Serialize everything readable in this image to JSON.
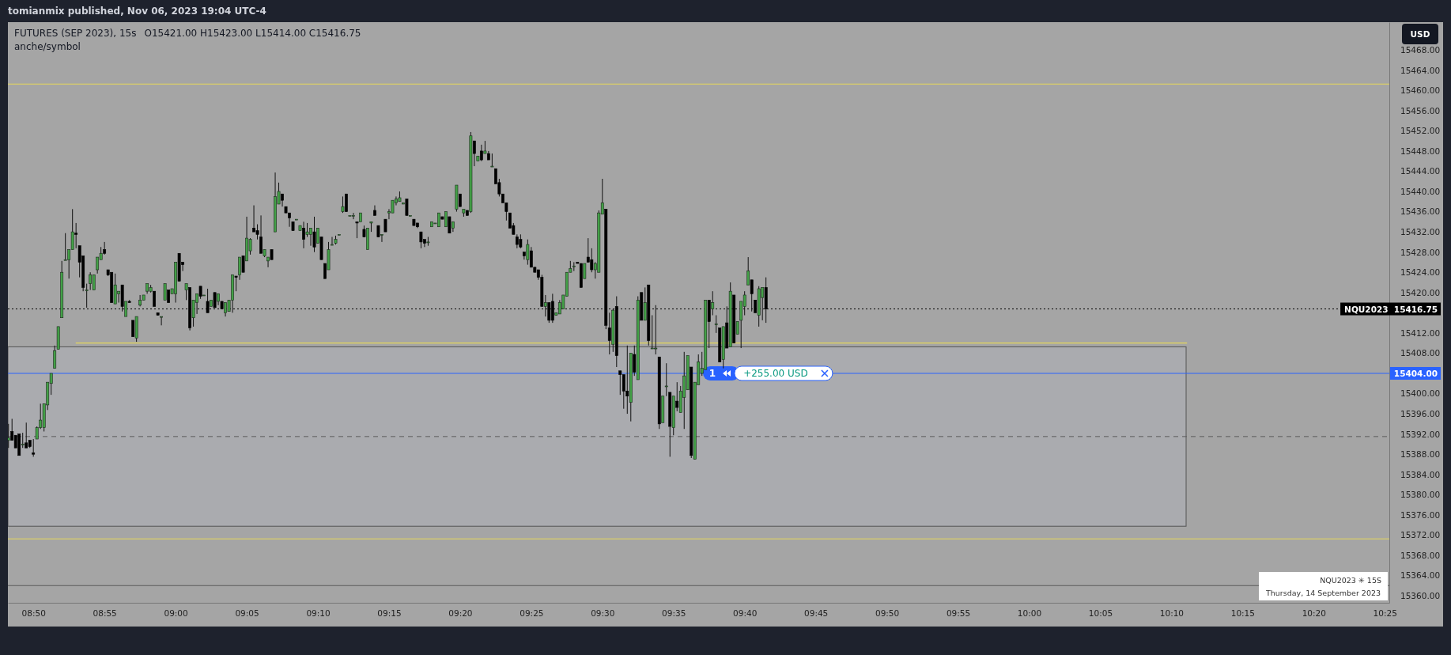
{
  "chart_data": {
    "type": "candlestick",
    "title": "FUTURES (SEP 2023), 15s",
    "subtitle": "anche/symbol",
    "annotations": [
      "tomianmix published, Nov 06, 2023 19:04 UTC-4",
      "O15421.00  H15423.00  L15414.00  C15416.75",
      "USD",
      "NQU2023 ✳ 15S",
      "Thursday, 14 September 2023",
      {
        "text": "1",
        "x": 9.629,
        "y": 15404
      },
      {
        "text": "+255.00 USD",
        "x": 9.703,
        "y": 15404
      }
    ],
    "xlim": [
      8.8035,
      10.422
    ],
    "ylim": [
      15358.6,
      15473.5
    ],
    "xticks": [
      {
        "value": 8.83333,
        "label": "08:50"
      },
      {
        "value": 8.91667,
        "label": "08:55"
      },
      {
        "value": 9,
        "label": "09:00"
      },
      {
        "value": 9.08333,
        "label": "09:05"
      },
      {
        "value": 9.16667,
        "label": "09:10"
      },
      {
        "value": 9.25,
        "label": "09:15"
      },
      {
        "value": 9.33333,
        "label": "09:20"
      },
      {
        "value": 9.41667,
        "label": "09:25"
      },
      {
        "value": 9.5,
        "label": "09:30"
      },
      {
        "value": 9.58333,
        "label": "09:35"
      },
      {
        "value": 9.66667,
        "label": "09:40"
      },
      {
        "value": 9.75,
        "label": "09:45"
      },
      {
        "value": 9.83333,
        "label": "09:50"
      },
      {
        "value": 9.91667,
        "label": "09:55"
      },
      {
        "value": 10,
        "label": "10:00"
      },
      {
        "value": 10.08333,
        "label": "10:05"
      },
      {
        "value": 10.16667,
        "label": "10:10"
      },
      {
        "value": 10.25,
        "label": "10:15"
      },
      {
        "value": 10.33333,
        "label": "10:20"
      },
      {
        "value": 10.41667,
        "label": "10:25"
      }
    ],
    "yticks": [
      {
        "value": 15360,
        "label": "15360.00"
      },
      {
        "value": 15364,
        "label": "15364.00"
      },
      {
        "value": 15368,
        "label": "15368.00"
      },
      {
        "value": 15372,
        "label": "15372.00"
      },
      {
        "value": 15376,
        "label": "15376.00"
      },
      {
        "value": 15380,
        "label": "15380.00"
      },
      {
        "value": 15384,
        "label": "15384.00"
      },
      {
        "value": 15388,
        "label": "15388.00"
      },
      {
        "value": 15392,
        "label": "15392.00"
      },
      {
        "value": 15396,
        "label": "15396.00"
      },
      {
        "value": 15400,
        "label": "15400.00"
      },
      {
        "value": 15408,
        "label": "15408.00"
      },
      {
        "value": 15412,
        "label": "15412.00"
      },
      {
        "value": 15420,
        "label": "15420.00"
      },
      {
        "value": 15424,
        "label": "15424.00"
      },
      {
        "value": 15428,
        "label": "15428.00"
      },
      {
        "value": 15432,
        "label": "15432.00"
      },
      {
        "value": 15436,
        "label": "15436.00"
      },
      {
        "value": 15440,
        "label": "15440.00"
      },
      {
        "value": 15444,
        "label": "15444.00"
      },
      {
        "value": 15448,
        "label": "15448.00"
      },
      {
        "value": 15452,
        "label": "15452.00"
      },
      {
        "value": 15456,
        "label": "15456.00"
      },
      {
        "value": 15460,
        "label": "15460.00"
      },
      {
        "value": 15464,
        "label": "15464.00"
      },
      {
        "value": 15468,
        "label": "15468.00"
      }
    ],
    "bands": [
      {
        "axis": "y",
        "from": 15373.75,
        "to": 15409.25,
        "color": "#aaabaf"
      }
    ],
    "ref_lines": [
      {
        "axis": "y",
        "value": 15461.25,
        "color": "#e6d85a"
      },
      {
        "axis": "y",
        "value": 15371.25,
        "color": "#e6d85a"
      },
      {
        "axis": "y",
        "value": 15362,
        "color": "#5d5d5d"
      },
      {
        "axis": "y",
        "value": 15391.5,
        "color": "#5d5d5d",
        "line_style": "dashed"
      },
      {
        "axis": "y",
        "value": 15404,
        "color": "#2962ff",
        "label": "15404.00"
      },
      {
        "axis": "y",
        "value": 15416.75,
        "color": "#000000",
        "line_style": "dotted",
        "label": "NQU2023  15416.75"
      }
    ],
    "series": [
      {
        "type": "line",
        "x": [
          8.883,
          10.185
        ],
        "values": [
          15410,
          15410
        ],
        "color": "#e6d85a"
      }
    ],
    "x": [
      8.80417,
      8.80833,
      8.8125,
      8.81667,
      8.82083,
      8.825,
      8.82917,
      8.83333,
      8.8375,
      8.84167,
      8.84583,
      8.85,
      8.85417,
      8.85833,
      8.8625,
      8.86667,
      8.87083,
      8.875,
      8.87917,
      8.88333,
      8.8875,
      8.89167,
      8.89583,
      8.9,
      8.90417,
      8.90833,
      8.9125,
      8.91667,
      8.92083,
      8.925,
      8.92917,
      8.93333,
      8.9375,
      8.94167,
      8.94583,
      8.95,
      8.95417,
      8.95833,
      8.9625,
      8.96667,
      8.97083,
      8.975,
      8.97917,
      8.98333,
      8.9875,
      8.99167,
      8.99583,
      9,
      9.00417,
      9.00833,
      9.0125,
      9.01667,
      9.02083,
      9.025,
      9.02917,
      9.03333,
      9.0375,
      9.04167,
      9.04583,
      9.05,
      9.05417,
      9.05833,
      9.0625,
      9.06667,
      9.07083,
      9.075,
      9.07917,
      9.08333,
      9.0875,
      9.09167,
      9.09583,
      9.1,
      9.10417,
      9.10833,
      9.1125,
      9.11667,
      9.12083,
      9.125,
      9.12917,
      9.13333,
      9.1375,
      9.14167,
      9.14583,
      9.15,
      9.15417,
      9.15833,
      9.1625,
      9.16667,
      9.17083,
      9.175,
      9.17917,
      9.18333,
      9.1875,
      9.19167,
      9.19583,
      9.2,
      9.20417,
      9.20833,
      9.2125,
      9.21667,
      9.22083,
      9.225,
      9.22917,
      9.23333,
      9.2375,
      9.24167,
      9.24583,
      9.25,
      9.25417,
      9.25833,
      9.2625,
      9.26667,
      9.27083,
      9.275,
      9.27917,
      9.28333,
      9.2875,
      9.29167,
      9.29583,
      9.3,
      9.30417,
      9.30833,
      9.3125,
      9.31667,
      9.32083,
      9.325,
      9.32917,
      9.33333,
      9.3375,
      9.34167,
      9.34583,
      9.35,
      9.35417,
      9.35833,
      9.3625,
      9.36667,
      9.37083,
      9.375,
      9.37917,
      9.38333,
      9.3875,
      9.39167,
      9.39583,
      9.4,
      9.40417,
      9.40833,
      9.4125,
      9.41667,
      9.42083,
      9.425,
      9.42917,
      9.43333,
      9.4375,
      9.44167,
      9.44583,
      9.45,
      9.45417,
      9.45833,
      9.4625,
      9.46667,
      9.47083,
      9.475,
      9.47917,
      9.48333,
      9.4875,
      9.49167,
      9.49583,
      9.5,
      9.50417,
      9.50833,
      9.5125,
      9.51667,
      9.52083,
      9.525,
      9.52917,
      9.53333,
      9.5375,
      9.54167,
      9.54583,
      9.55,
      9.55417,
      9.55833,
      9.5625,
      9.56667,
      9.57083,
      9.575,
      9.57917,
      9.58333,
      9.5875,
      9.59167,
      9.59583,
      9.6,
      9.60417,
      9.60833,
      9.6125,
      9.61667,
      9.62083,
      9.625,
      9.62917,
      9.63333,
      9.6375,
      9.64167,
      9.64583,
      9.65,
      9.65417,
      9.65833,
      9.6625,
      9.66667,
      9.67083,
      9.675,
      9.67917,
      9.68333,
      9.6875,
      9.69167
    ],
    "ohlc": [
      [
        15390.75,
        15394,
        15389.25,
        15391.25
      ],
      [
        15392.5,
        15395,
        15390.75,
        15390.75
      ],
      [
        15391.75,
        15391.75,
        15389.25,
        15389.25
      ],
      [
        15392,
        15392,
        15387.75,
        15387.75
      ],
      [
        15390,
        15392.25,
        15389.25,
        15390
      ],
      [
        15390.25,
        15394.25,
        15389.25,
        15389.25
      ],
      [
        15390.75,
        15390.75,
        15389.25,
        15389.5
      ],
      [
        15388.25,
        15391,
        15387.5,
        15388
      ],
      [
        15391,
        15393.5,
        15391,
        15393.25
      ],
      [
        15393.25,
        15398,
        15393,
        15394.75
      ],
      [
        15393.25,
        15398,
        15392.5,
        15398
      ],
      [
        15397.75,
        15402.25,
        15396.75,
        15402.25
      ],
      [
        15402,
        15404,
        15399.75,
        15404
      ],
      [
        15405,
        15409.5,
        15405,
        15408.5
      ],
      [
        15408.75,
        15413.25,
        15408.75,
        15413.25
      ],
      [
        15415,
        15426.25,
        15415,
        15424
      ],
      [
        15426.5,
        15431.75,
        15426.5,
        15426.5
      ],
      [
        15426.5,
        15428.5,
        15422.75,
        15428.5
      ],
      [
        15428.5,
        15436.5,
        15428.5,
        15432
      ],
      [
        15431.75,
        15433.75,
        15428.75,
        15431.5
      ],
      [
        15429.25,
        15429.25,
        15423,
        15426
      ],
      [
        15427.25,
        15427.25,
        15420.25,
        15421
      ],
      [
        15420.5,
        15421.75,
        15417,
        15420.5
      ],
      [
        15421.75,
        15424,
        15420.5,
        15423.5
      ],
      [
        15420.5,
        15423.5,
        15420.5,
        15423.5
      ],
      [
        15424.5,
        15427,
        15423.75,
        15427
      ],
      [
        15426.5,
        15429,
        15426.5,
        15427.75
      ],
      [
        15428.5,
        15430,
        15427.5,
        15427.75
      ],
      [
        15424.5,
        15424.5,
        15423.25,
        15423.5
      ],
      [
        15424,
        15424,
        15418,
        15418
      ],
      [
        15417.75,
        15423.75,
        15417.75,
        15421.5
      ],
      [
        15419.75,
        15420.25,
        15418,
        15420.25
      ],
      [
        15421.5,
        15421.5,
        15416.25,
        15417.25
      ],
      [
        15415.25,
        15418.25,
        15415.25,
        15418.25
      ],
      [
        15418.25,
        15418.5,
        15418,
        15418
      ],
      [
        15414.5,
        15414.5,
        15411.25,
        15411.25
      ],
      [
        15411,
        15415.25,
        15410.25,
        15415.25
      ],
      [
        15417.5,
        15419.5,
        15417.25,
        15418.5
      ],
      [
        15418.5,
        15419.5,
        15418.5,
        15419.5
      ],
      [
        15420.25,
        15421.75,
        15419.75,
        15421.75
      ],
      [
        15420.25,
        15421.5,
        15420,
        15421
      ],
      [
        15420.25,
        15420.25,
        15417.25,
        15417.25
      ],
      [
        15416,
        15416,
        15415.5,
        15415.5
      ],
      [
        15415.25,
        15415.25,
        15413.5,
        15415.25
      ],
      [
        15418.5,
        15421.75,
        15418.5,
        15421.75
      ],
      [
        15420.5,
        15420.5,
        15418,
        15418
      ],
      [
        15419.75,
        15420.75,
        15419.75,
        15420.75
      ],
      [
        15419.75,
        15426,
        15418,
        15426
      ],
      [
        15427.75,
        15427.75,
        15422.25,
        15422.25
      ],
      [
        15426,
        15426,
        15424.25,
        15425.5
      ],
      [
        15420.5,
        15421.75,
        15418.5,
        15421.75
      ],
      [
        15421,
        15421,
        15412.5,
        15413
      ],
      [
        15415,
        15418.5,
        15413.25,
        15418.5
      ],
      [
        15418,
        15419.75,
        15415.75,
        15419.75
      ],
      [
        15421.25,
        15421.25,
        15418.75,
        15419.25
      ],
      [
        15419.5,
        15419.5,
        15419.5,
        15419.5
      ],
      [
        15418.25,
        15420.75,
        15416,
        15416
      ],
      [
        15417.25,
        15418.5,
        15417.25,
        15418.5
      ],
      [
        15420,
        15420,
        15417,
        15417
      ],
      [
        15418.25,
        15419.75,
        15417.5,
        15419.75
      ],
      [
        15418.25,
        15418.25,
        15416.75,
        15416.75
      ],
      [
        15416,
        15418,
        15415.25,
        15418
      ],
      [
        15416.25,
        15418.5,
        15416.25,
        15418.5
      ],
      [
        15418.5,
        15423.5,
        15416,
        15423.5
      ],
      [
        15423.25,
        15423.25,
        15420.25,
        15423
      ],
      [
        15423.5,
        15427,
        15422.5,
        15427
      ],
      [
        15427.25,
        15427.25,
        15424,
        15424
      ],
      [
        15426.25,
        15435,
        15426.25,
        15430.75
      ],
      [
        15428.25,
        15430.75,
        15427.5,
        15430.5
      ],
      [
        15432.75,
        15437.25,
        15432,
        15432
      ],
      [
        15432.25,
        15433.5,
        15430.5,
        15431.5
      ],
      [
        15431,
        15435.25,
        15427.75,
        15427.75
      ],
      [
        15427.25,
        15428.5,
        15427,
        15428.5
      ],
      [
        15426.25,
        15427,
        15425,
        15427
      ],
      [
        15428.5,
        15428.5,
        15426.5,
        15426.5
      ],
      [
        15432,
        15443.75,
        15432,
        15439
      ],
      [
        15437.5,
        15441.75,
        15437.5,
        15440
      ],
      [
        15439.5,
        15439.5,
        15437,
        15438.25
      ],
      [
        15437,
        15437,
        15435.75,
        15435.75
      ],
      [
        15435.75,
        15435.75,
        15433,
        15434.75
      ],
      [
        15434,
        15434,
        15432.25,
        15432.25
      ],
      [
        15434.5,
        15434.5,
        15434.5,
        15434.5
      ],
      [
        15432.25,
        15433.25,
        15432.25,
        15433.25
      ],
      [
        15432.75,
        15434,
        15428.75,
        15430.5
      ],
      [
        15431.5,
        15433.75,
        15431,
        15432
      ],
      [
        15431.5,
        15432.75,
        15429.25,
        15432.75
      ],
      [
        15432,
        15435,
        15428,
        15429
      ],
      [
        15429.75,
        15432.75,
        15429.75,
        15432.75
      ],
      [
        15431,
        15431,
        15426.5,
        15426.5
      ],
      [
        15425.75,
        15425.75,
        15422.75,
        15422.75
      ],
      [
        15424.5,
        15430,
        15424.5,
        15428.5
      ],
      [
        15429.5,
        15431,
        15429.5,
        15429.5
      ],
      [
        15429.75,
        15431.25,
        15429.5,
        15430.5
      ],
      [
        15431.5,
        15431.5,
        15431.5,
        15431.5
      ],
      [
        15436,
        15439,
        15435.75,
        15437
      ],
      [
        15439.5,
        15439.5,
        15436,
        15436
      ],
      [
        15435.25,
        15435.25,
        15435.25,
        15435.25
      ],
      [
        15435.25,
        15435.75,
        15434.5,
        15435.25
      ],
      [
        15434,
        15434,
        15430.75,
        15433.75
      ],
      [
        15434,
        15435.75,
        15434,
        15435.75
      ],
      [
        15432.5,
        15433.25,
        15431,
        15431
      ],
      [
        15428.5,
        15432.75,
        15428.5,
        15432.75
      ],
      [
        15433.75,
        15434,
        15432,
        15434
      ],
      [
        15436.25,
        15437.25,
        15435.25,
        15435.25
      ],
      [
        15433.25,
        15433.25,
        15431,
        15431
      ],
      [
        15431.5,
        15431.5,
        15430,
        15431.5
      ],
      [
        15434.5,
        15434.5,
        15432,
        15432
      ],
      [
        15435.75,
        15436.5,
        15434.5,
        15436
      ],
      [
        15435.75,
        15438.25,
        15435.75,
        15438.25
      ],
      [
        15437.75,
        15439,
        15437.25,
        15438.5
      ],
      [
        15438,
        15440,
        15438,
        15438.75
      ],
      [
        15437.5,
        15437.75,
        15437.5,
        15437.75
      ],
      [
        15438.5,
        15438.5,
        15435.25,
        15435.25
      ],
      [
        15435.25,
        15435.25,
        15435.25,
        15435.25
      ],
      [
        15434.5,
        15434.5,
        15433.25,
        15433.25
      ],
      [
        15433.75,
        15433.75,
        15432.75,
        15433
      ],
      [
        15432,
        15432,
        15428.75,
        15430
      ],
      [
        15430.5,
        15430.5,
        15429,
        15429.75
      ],
      [
        15430,
        15431,
        15429.25,
        15430
      ],
      [
        15433,
        15434,
        15433,
        15434
      ],
      [
        15433.75,
        15433.75,
        15433.75,
        15433.75
      ],
      [
        15433,
        15435.75,
        15433,
        15435.75
      ],
      [
        15435,
        15435,
        15434.5,
        15434.5
      ],
      [
        15433,
        15436,
        15433,
        15436
      ],
      [
        15435,
        15435,
        15431.75,
        15431.75
      ],
      [
        15432.75,
        15434,
        15432,
        15434
      ],
      [
        15436.5,
        15441.25,
        15436,
        15441.25
      ],
      [
        15439.5,
        15439.5,
        15437,
        15437
      ],
      [
        15435.75,
        15436.5,
        15435,
        15436.5
      ],
      [
        15436.25,
        15436.25,
        15435.25,
        15435.25
      ],
      [
        15436,
        15451.75,
        15435.75,
        15451
      ],
      [
        15450,
        15450,
        15445,
        15447.5
      ],
      [
        15446,
        15447,
        15446,
        15447
      ],
      [
        15448,
        15449.25,
        15446,
        15446.25
      ],
      [
        15447.5,
        15450,
        15447.5,
        15448
      ],
      [
        15447.5,
        15448,
        15446.25,
        15446.25
      ],
      [
        15445,
        15447.5,
        15445,
        15445
      ],
      [
        15444.5,
        15444.5,
        15441.5,
        15441.5
      ],
      [
        15441.75,
        15442.5,
        15439,
        15439.5
      ],
      [
        15439.5,
        15439.5,
        15437.75,
        15437.75
      ],
      [
        15437.75,
        15437.75,
        15434.25,
        15436
      ],
      [
        15435.75,
        15435.75,
        15432.75,
        15432.75
      ],
      [
        15433.25,
        15433.75,
        15431.5,
        15431.5
      ],
      [
        15431,
        15431.5,
        15428.75,
        15429.5
      ],
      [
        15430.5,
        15431.5,
        15428.75,
        15429
      ],
      [
        15428,
        15428,
        15426.5,
        15427.25
      ],
      [
        15426.5,
        15430.5,
        15425.5,
        15429.5
      ],
      [
        15428.25,
        15429,
        15425,
        15425
      ],
      [
        15425,
        15425,
        15424,
        15424
      ],
      [
        15424.5,
        15424.5,
        15422.5,
        15423
      ],
      [
        15423,
        15423.5,
        15417.25,
        15417.25
      ],
      [
        15417.25,
        15419.5,
        15415.25,
        15418
      ],
      [
        15418,
        15418,
        15414,
        15414.5
      ],
      [
        15418.25,
        15419.75,
        15414,
        15414.5
      ],
      [
        15415.5,
        15416,
        15415.5,
        15416
      ],
      [
        15415.75,
        15418.5,
        15415.75,
        15418
      ],
      [
        15416.75,
        15419.5,
        15416.75,
        15419.5
      ],
      [
        15419.25,
        15424,
        15419.25,
        15424
      ],
      [
        15424,
        15426.25,
        15424,
        15424.75
      ],
      [
        15425.25,
        15426,
        15424.25,
        15425.25
      ],
      [
        15426,
        15426,
        15425.75,
        15425.75
      ],
      [
        15425.75,
        15425.75,
        15421,
        15421
      ],
      [
        15422.75,
        15425.75,
        15422.75,
        15425.75
      ],
      [
        15427,
        15430.75,
        15426,
        15426
      ],
      [
        15426.5,
        15428.75,
        15424,
        15424.5
      ],
      [
        15424.5,
        15426,
        15422.75,
        15425.75
      ],
      [
        15424,
        15436.25,
        15424,
        15435.75
      ],
      [
        15435.5,
        15442.5,
        15435.5,
        15437.75
      ],
      [
        15436.5,
        15436.5,
        15412.75,
        15413.5
      ],
      [
        15413,
        15416,
        15407.75,
        15410.5
      ],
      [
        15409.75,
        15416.75,
        15408.25,
        15416.5
      ],
      [
        15417.25,
        15419.25,
        15405.25,
        15407.5
      ],
      [
        15404.5,
        15404.5,
        15399.75,
        15403.75
      ],
      [
        15403.75,
        15403.75,
        15397,
        15400.5
      ],
      [
        15400.5,
        15409.5,
        15396,
        15399.5
      ],
      [
        15398.25,
        15408,
        15394.5,
        15408
      ],
      [
        15407.75,
        15409.5,
        15403.5,
        15404.25
      ],
      [
        15402.75,
        15419.25,
        15402.75,
        15418.5
      ],
      [
        15420,
        15420,
        15414.5,
        15414.5
      ],
      [
        15414.5,
        15421,
        15414.5,
        15418
      ],
      [
        15421.5,
        15421.5,
        15409.5,
        15410.5
      ],
      [
        15409,
        15415.5,
        15409,
        15409
      ],
      [
        15409,
        15417.5,
        15407.75,
        15409
      ],
      [
        15407.25,
        15407.25,
        15393,
        15394
      ],
      [
        15394.25,
        15399.5,
        15394.25,
        15399.5
      ],
      [
        15401.5,
        15406,
        15399.5,
        15401.5
      ],
      [
        15400.25,
        15400.25,
        15387.5,
        15393.5
      ],
      [
        15393.25,
        15399.5,
        15391.75,
        15399.5
      ],
      [
        15398.5,
        15402.25,
        15396.5,
        15397.25
      ],
      [
        15396.25,
        15401.5,
        15396.25,
        15400.5
      ],
      [
        15399.25,
        15408.25,
        15393,
        15403.5
      ],
      [
        15400.75,
        15407.5,
        15400.75,
        15407.5
      ],
      [
        15405.25,
        15405.25,
        15387.25,
        15387.75
      ],
      [
        15387,
        15402.25,
        15387,
        15402.25
      ],
      [
        15401.75,
        15407.75,
        15401.75,
        15406.25
      ],
      [
        15404,
        15408.25,
        15403.5,
        15405
      ],
      [
        15404.75,
        15418.5,
        15404.75,
        15418.5
      ],
      [
        15418.5,
        15418.5,
        15409,
        15414.25
      ],
      [
        15416.75,
        15420.25,
        15415.5,
        15418
      ],
      [
        15413.75,
        15415.5,
        15412,
        15413.75
      ],
      [
        15413,
        15413,
        15406.25,
        15406.25
      ],
      [
        15406.75,
        15413.25,
        15405,
        15413.25
      ],
      [
        15414,
        15417.25,
        15409,
        15409
      ],
      [
        15409.25,
        15422,
        15409.25,
        15420.25
      ],
      [
        15419.5,
        15419.5,
        15410,
        15410
      ],
      [
        15411.75,
        15414.25,
        15411.75,
        15414.25
      ],
      [
        15414.5,
        15418.25,
        15409,
        15418.25
      ],
      [
        15417.25,
        15420.25,
        15415.5,
        15419.5
      ],
      [
        15421.5,
        15427,
        15421.5,
        15424.25
      ],
      [
        15422.5,
        15422.5,
        15416.25,
        15419.75
      ],
      [
        15418.5,
        15418.5,
        15416,
        15416
      ],
      [
        15415.5,
        15421.25,
        15413.25,
        15420.75
      ],
      [
        15419,
        15421,
        15414.5,
        15421
      ],
      [
        15421,
        15423,
        15414,
        15416.75
      ]
    ]
  }
}
